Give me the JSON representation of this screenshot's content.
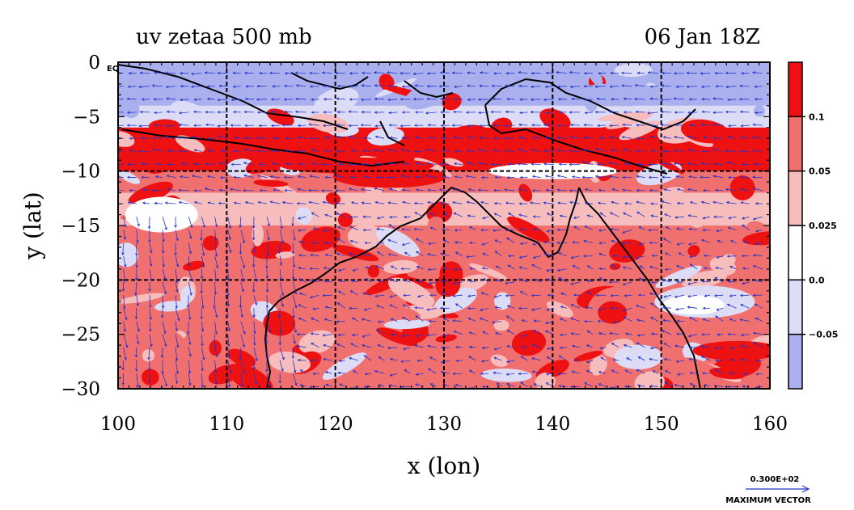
{
  "chart_data": {
    "type": "heatmap",
    "title": "uv zetaa 500 mb",
    "date": "06 Jan 18Z",
    "xlabel": "x (lon)",
    "ylabel": "y (lat)",
    "xlim": [
      100,
      160
    ],
    "ylim": [
      -30,
      0
    ],
    "x_ticks": [
      100,
      110,
      120,
      130,
      140,
      150,
      160
    ],
    "y_ticks": [
      0,
      -5,
      -10,
      -15,
      -20,
      -25,
      -30
    ],
    "x_tick_labels": [
      "100",
      "110",
      "120",
      "130",
      "140",
      "150",
      "160"
    ],
    "y_tick_labels": [
      "0",
      "−5",
      "−10",
      "−15",
      "−20",
      "−25",
      "−30"
    ],
    "grid": "dashed",
    "eq_label": "EQ",
    "colorbar": {
      "levels": [
        0.1,
        0.05,
        0.025,
        0.0,
        -0.05
      ],
      "level_labels": [
        "0.1",
        "0.05",
        "0.025",
        "0.0",
        "−0.05"
      ],
      "colors": [
        "#ee1111",
        "#f07070",
        "#f7bcbc",
        "#ffffff",
        "#dcdcf6",
        "#aab0ee"
      ]
    },
    "vector_reference": {
      "magnitude_label": "0.300E+02",
      "caption": "MAXIMUM VECTOR"
    }
  },
  "colors": {
    "strong_positive": "#ee1111",
    "positive": "#f07070",
    "weak_positive": "#f7bcbc",
    "weak_negative": "#dcdcf6",
    "negative": "#aab0ee",
    "vectors": "#2233cc",
    "coast": "#000000"
  }
}
